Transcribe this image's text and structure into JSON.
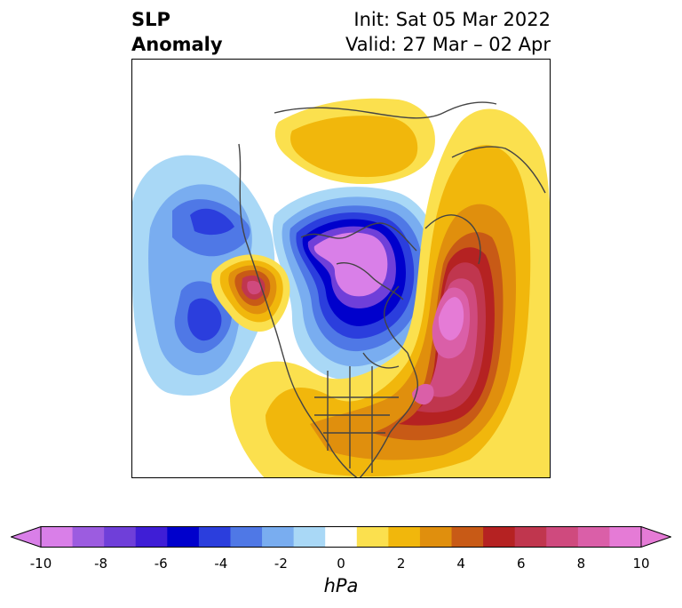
{
  "title": {
    "left_line1": "SLP",
    "left_line2": "Anomaly",
    "right_line1": "Init: Sat 05 Mar 2022",
    "right_line2": "Valid: 27 Mar – 02 Apr"
  },
  "colorbar": {
    "unit": "hPa",
    "ticks": [
      "-10",
      "-8",
      "-6",
      "-4",
      "-2",
      "0",
      "2",
      "4",
      "6",
      "8",
      "10"
    ],
    "colors": [
      "#d97fe8",
      "#9c5ce0",
      "#6f3fd9",
      "#3f1ed6",
      "#0000cc",
      "#2b3edd",
      "#4f78e6",
      "#79adf0",
      "#a9d8f6",
      "#ffffff",
      "#fbe04e",
      "#f1b70c",
      "#e08f0d",
      "#c85a16",
      "#b52222",
      "#c0364e",
      "#cf4a7e",
      "#da5fa8",
      "#e57bd6"
    ],
    "extend_low_color": "#d97fe8",
    "extend_high_color": "#e57bd6"
  },
  "map": {
    "projection": "north-polar-stereographic",
    "field": "sea level pressure anomaly"
  }
}
